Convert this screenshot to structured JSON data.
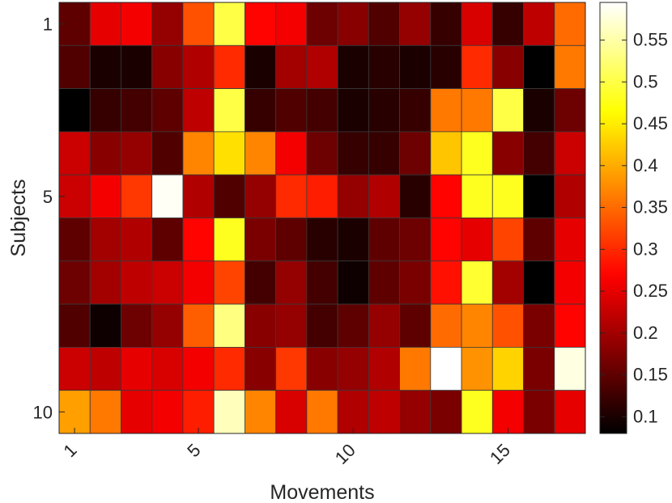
{
  "chart_data": {
    "type": "heatmap",
    "title": "",
    "xlabel": "Movements",
    "ylabel": "Subjects",
    "x_categories": [
      1,
      2,
      3,
      4,
      5,
      6,
      7,
      8,
      9,
      10,
      11,
      12,
      13,
      14,
      15,
      16,
      17
    ],
    "y_categories": [
      1,
      2,
      3,
      4,
      5,
      6,
      7,
      8,
      9,
      10
    ],
    "x_tick_labels": [
      "1",
      "5",
      "10",
      "15"
    ],
    "x_tick_values": [
      1,
      5,
      10,
      15
    ],
    "y_tick_labels": [
      "1",
      "5",
      "10"
    ],
    "y_tick_values": [
      1,
      5,
      10
    ],
    "colormap": "hot",
    "clim": [
      0.08,
      0.595
    ],
    "colorbar_ticks": [
      0.1,
      0.15,
      0.2,
      0.25,
      0.3,
      0.35,
      0.4,
      0.45,
      0.5,
      0.55
    ],
    "colorbar_tick_labels": [
      "0.1",
      "0.15",
      "0.2",
      "0.25",
      "0.3",
      "0.35",
      "0.4",
      "0.45",
      "0.5",
      "0.55"
    ],
    "grid": true,
    "values": [
      [
        0.15,
        0.25,
        0.26,
        0.19,
        0.33,
        0.5,
        0.27,
        0.26,
        0.16,
        0.18,
        0.14,
        0.19,
        0.12,
        0.24,
        0.12,
        0.22,
        0.35
      ],
      [
        0.14,
        0.1,
        0.1,
        0.18,
        0.21,
        0.3,
        0.1,
        0.2,
        0.21,
        0.1,
        0.11,
        0.1,
        0.11,
        0.3,
        0.18,
        0.08,
        0.36
      ],
      [
        0.08,
        0.12,
        0.13,
        0.15,
        0.22,
        0.5,
        0.12,
        0.14,
        0.13,
        0.1,
        0.11,
        0.12,
        0.36,
        0.36,
        0.5,
        0.1,
        0.16
      ],
      [
        0.23,
        0.18,
        0.19,
        0.14,
        0.37,
        0.44,
        0.37,
        0.26,
        0.16,
        0.12,
        0.12,
        0.16,
        0.42,
        0.48,
        0.18,
        0.13,
        0.23
      ],
      [
        0.23,
        0.26,
        0.31,
        0.59,
        0.21,
        0.14,
        0.19,
        0.3,
        0.29,
        0.19,
        0.21,
        0.11,
        0.27,
        0.48,
        0.48,
        0.08,
        0.21
      ],
      [
        0.15,
        0.2,
        0.21,
        0.15,
        0.27,
        0.48,
        0.17,
        0.15,
        0.11,
        0.1,
        0.15,
        0.16,
        0.27,
        0.25,
        0.32,
        0.15,
        0.25
      ],
      [
        0.16,
        0.2,
        0.22,
        0.23,
        0.26,
        0.32,
        0.13,
        0.19,
        0.13,
        0.09,
        0.15,
        0.17,
        0.28,
        0.49,
        0.2,
        0.08,
        0.26
      ],
      [
        0.14,
        0.09,
        0.16,
        0.19,
        0.34,
        0.53,
        0.18,
        0.19,
        0.13,
        0.15,
        0.19,
        0.15,
        0.35,
        0.37,
        0.33,
        0.17,
        0.27
      ],
      [
        0.23,
        0.22,
        0.25,
        0.24,
        0.26,
        0.3,
        0.18,
        0.31,
        0.18,
        0.19,
        0.21,
        0.36,
        0.595,
        0.38,
        0.43,
        0.17,
        0.58
      ],
      [
        0.39,
        0.36,
        0.25,
        0.26,
        0.29,
        0.56,
        0.37,
        0.24,
        0.36,
        0.21,
        0.22,
        0.19,
        0.17,
        0.48,
        0.26,
        0.17,
        0.25
      ]
    ]
  }
}
